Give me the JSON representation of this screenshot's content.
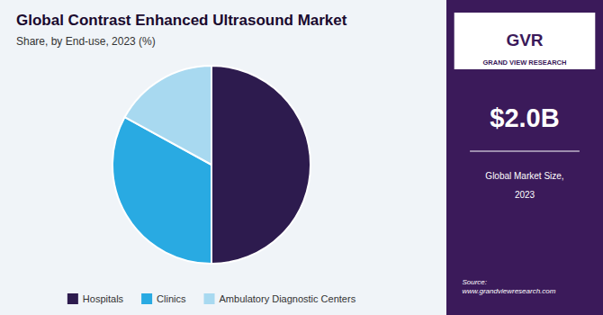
{
  "chart_data": {
    "type": "pie",
    "title": "Global Contrast Enhanced Ultrasound Market",
    "subtitle": "Share, by End-use, 2023 (%)",
    "categories": [
      "Hospitals",
      "Clinics",
      "Ambulatory Diagnostic Centers"
    ],
    "values": [
      50,
      33,
      17
    ],
    "colors": [
      "#2d1b4e",
      "#29aae2",
      "#a8d9f0"
    ],
    "legend": "bottom",
    "annotations": [
      "GVR",
      "GRAND VIEW RESEARCH",
      "$2.0B",
      "Global Market Size,",
      "2023",
      "Source:\nwww.grandviewresearch.com"
    ]
  }
}
